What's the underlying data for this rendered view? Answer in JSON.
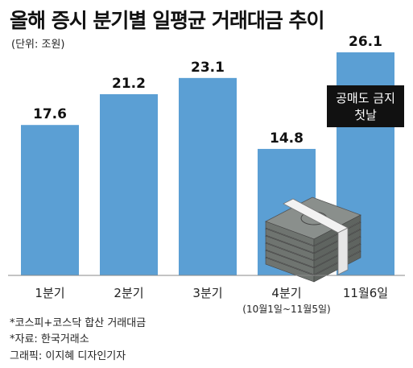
{
  "chart_data": {
    "type": "bar",
    "title": "올해 증시 분기별 일평균 거래대금 추이",
    "unit_label": "(단위: 조원)",
    "categories": [
      "1분기",
      "2분기",
      "3분기",
      "4분기",
      "11월6일"
    ],
    "category_sublabels": [
      "",
      "",
      "",
      "(10월1일~11월5일)",
      ""
    ],
    "values": [
      17.6,
      21.2,
      23.1,
      14.8,
      26.1
    ],
    "value_labels": [
      "17.6",
      "21.2",
      "23.1",
      "14.8",
      "26.1"
    ],
    "ylim": [
      0,
      26.1
    ],
    "grid": false,
    "bar_color": "#5b9fd4",
    "annotation": {
      "target_category": "11월6일",
      "lines": [
        "공매도 금지",
        "첫날"
      ],
      "background": "#111111",
      "text_color": "#ffffff"
    }
  },
  "footnotes": [
    "*코스피+코스닥 합산 거래대금",
    "*자료: 한국거래소",
    "그래픽: 이지혜 디자인기자"
  ],
  "illustration_icon": "money-stack-icon"
}
